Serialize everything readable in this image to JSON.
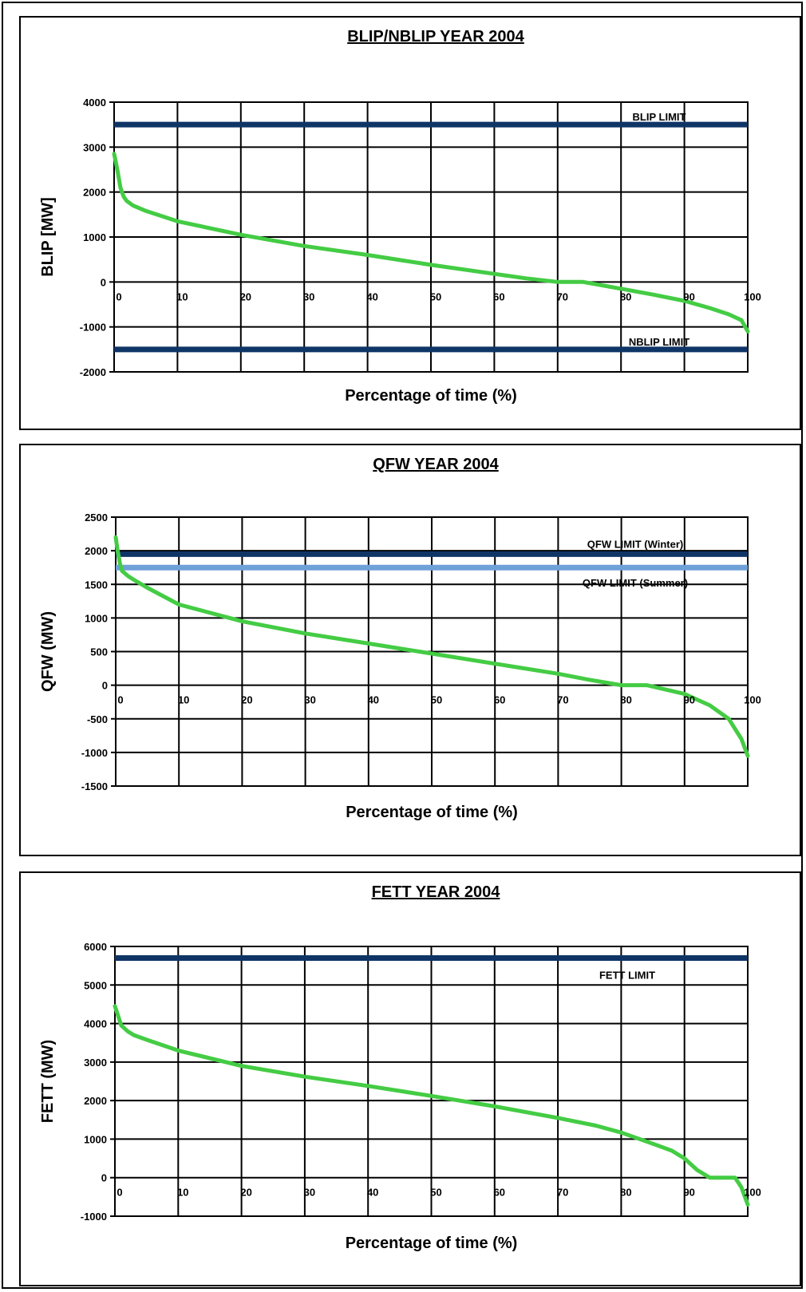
{
  "chart_data": [
    {
      "type": "line",
      "title": "BLIP/NBLIP YEAR 2004",
      "xlabel": "Percentage of time (%)",
      "ylabel": "BLIP [MW]",
      "xlim": [
        0,
        100
      ],
      "ylim": [
        -2000,
        4000
      ],
      "x_ticks": [
        0,
        10,
        20,
        30,
        40,
        50,
        60,
        70,
        80,
        90,
        100
      ],
      "y_ticks": [
        -2000,
        -1000,
        0,
        1000,
        2000,
        3000,
        4000
      ],
      "grid": true,
      "series": [
        {
          "color": "#44cc44",
          "x": [
            0,
            0.5,
            1,
            1.5,
            2,
            3,
            5,
            10,
            20,
            30,
            40,
            50,
            60,
            65,
            70,
            74,
            80,
            85,
            90,
            94,
            97,
            99,
            100
          ],
          "y": [
            2850,
            2500,
            2100,
            1900,
            1800,
            1700,
            1580,
            1350,
            1050,
            800,
            600,
            380,
            180,
            80,
            0,
            0,
            -150,
            -280,
            -420,
            -580,
            -720,
            -850,
            -1100
          ]
        }
      ],
      "limits": [
        {
          "name": "BLIP LIMIT",
          "value": 3500,
          "color": "#0f3566"
        },
        {
          "name": "NBLIP LIMIT",
          "value": -1500,
          "color": "#0f3566"
        }
      ]
    },
    {
      "type": "line",
      "title": "QFW YEAR 2004",
      "xlabel": "Percentage of time (%)",
      "ylabel": "QFW (MW)",
      "xlim": [
        0,
        100
      ],
      "ylim": [
        -1500,
        2500
      ],
      "x_ticks": [
        0,
        10,
        20,
        30,
        40,
        50,
        60,
        70,
        80,
        90,
        100
      ],
      "y_ticks": [
        -1500,
        -1000,
        -500,
        0,
        500,
        1000,
        1500,
        2000,
        2500
      ],
      "grid": true,
      "series": [
        {
          "color": "#44cc44",
          "x": [
            0,
            0.3,
            0.7,
            1,
            2,
            3,
            5,
            10,
            20,
            30,
            40,
            50,
            60,
            70,
            75,
            80,
            84,
            90,
            94,
            97,
            99,
            100
          ],
          "y": [
            2200,
            2000,
            1800,
            1700,
            1620,
            1560,
            1450,
            1200,
            950,
            770,
            620,
            470,
            320,
            170,
            80,
            0,
            0,
            -130,
            -300,
            -500,
            -800,
            -1050
          ]
        }
      ],
      "limits": [
        {
          "name": "QFW LIMIT (Winter)",
          "value": 1950,
          "color": "#0f3566"
        },
        {
          "name": "QFW LIMIT (Summer)",
          "value": 1750,
          "color": "#6fa0d8"
        }
      ]
    },
    {
      "type": "line",
      "title": "FETT YEAR 2004",
      "xlabel": "Percentage of time (%)",
      "ylabel": "FETT (MW)",
      "xlim": [
        0,
        100
      ],
      "ylim": [
        -1000,
        6000
      ],
      "x_ticks": [
        0,
        10,
        20,
        30,
        40,
        50,
        60,
        70,
        80,
        90,
        100
      ],
      "y_ticks": [
        -1000,
        0,
        1000,
        2000,
        3000,
        4000,
        5000,
        6000
      ],
      "grid": true,
      "series": [
        {
          "color": "#44cc44",
          "x": [
            0,
            0.5,
            1,
            2,
            3,
            5,
            10,
            20,
            30,
            40,
            50,
            60,
            70,
            76,
            80,
            85,
            88,
            90,
            92,
            94,
            96,
            98,
            99,
            100
          ],
          "y": [
            4450,
            4200,
            3950,
            3800,
            3700,
            3580,
            3300,
            2900,
            2620,
            2380,
            2120,
            1850,
            1550,
            1350,
            1170,
            880,
            700,
            500,
            200,
            0,
            0,
            0,
            -250,
            -700
          ]
        }
      ],
      "limits": [
        {
          "name": "FETT LIMIT",
          "value": 5700,
          "color": "#0f3566"
        }
      ]
    }
  ]
}
